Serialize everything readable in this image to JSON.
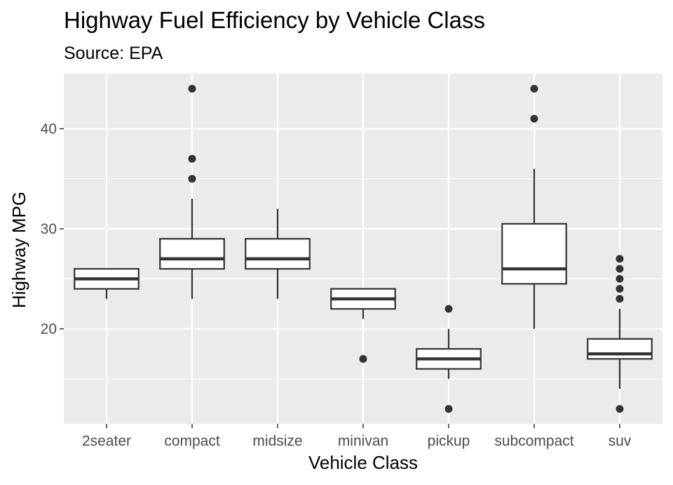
{
  "chart_data": {
    "type": "boxplot",
    "title": "Highway Fuel Efficiency by Vehicle Class",
    "subtitle": "Source: EPA",
    "xlabel": "Vehicle Class",
    "ylabel": "Highway MPG",
    "ylim": [
      10.5,
      45.5
    ],
    "yticks": [
      20,
      30,
      40
    ],
    "ytick_labels": [
      "20",
      "30",
      "40"
    ],
    "y_minor_ticks": [
      15,
      25,
      35
    ],
    "grid": true,
    "categories": [
      "2seater",
      "compact",
      "midsize",
      "minivan",
      "pickup",
      "subcompact",
      "suv"
    ],
    "boxes": [
      {
        "category": "2seater",
        "lower_whisker": 23,
        "q1": 24,
        "median": 25,
        "q3": 26,
        "upper_whisker": 26,
        "outliers": []
      },
      {
        "category": "compact",
        "lower_whisker": 23,
        "q1": 26,
        "median": 27,
        "q3": 29,
        "upper_whisker": 33,
        "outliers": [
          35,
          37,
          44
        ]
      },
      {
        "category": "midsize",
        "lower_whisker": 23,
        "q1": 26,
        "median": 27,
        "q3": 29,
        "upper_whisker": 32,
        "outliers": []
      },
      {
        "category": "minivan",
        "lower_whisker": 21,
        "q1": 22,
        "median": 23,
        "q3": 24,
        "upper_whisker": 24,
        "outliers": [
          17
        ]
      },
      {
        "category": "pickup",
        "lower_whisker": 15,
        "q1": 16,
        "median": 17,
        "q3": 18,
        "upper_whisker": 20,
        "outliers": [
          12,
          22
        ]
      },
      {
        "category": "subcompact",
        "lower_whisker": 20,
        "q1": 24.5,
        "median": 26,
        "q3": 30.5,
        "upper_whisker": 36,
        "outliers": [
          41,
          44
        ]
      },
      {
        "category": "suv",
        "lower_whisker": 14,
        "q1": 17,
        "median": 17.5,
        "q3": 19,
        "upper_whisker": 22,
        "outliers": [
          12,
          23,
          24,
          25,
          26,
          27
        ]
      }
    ],
    "colors": {
      "panel_background": "#ebebeb",
      "grid": "#ffffff",
      "box_fill": "#ffffff",
      "box_stroke": "#333333",
      "outlier": "#333333",
      "tick_text": "#4d4d4d",
      "tick_mark": "#333333"
    }
  }
}
